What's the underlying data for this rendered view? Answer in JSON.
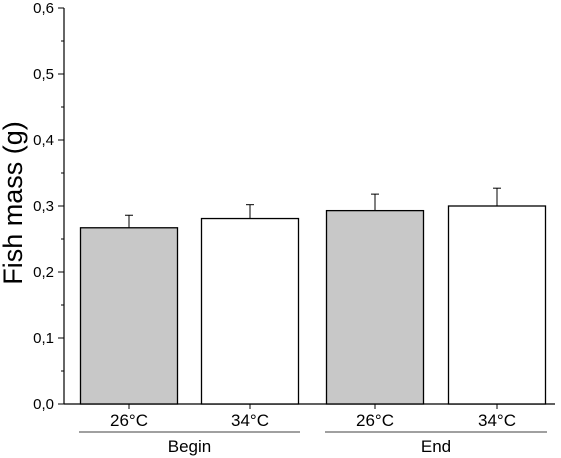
{
  "chart_data": {
    "type": "bar",
    "ylabel": "Fish mass (g)",
    "xlabel": "",
    "ylim": [
      0,
      0.6
    ],
    "yticks": [
      "0,0",
      "0,1",
      "0,2",
      "0,3",
      "0,4",
      "0,5",
      "0,6"
    ],
    "categories": [
      "26°C",
      "34°C",
      "26°C",
      "34°C"
    ],
    "groups": [
      "Begin",
      "End"
    ],
    "bars": [
      {
        "category": "26°C",
        "group": "Begin",
        "value": 0.267,
        "error": 0.019,
        "fill": "#c8c8c8"
      },
      {
        "category": "34°C",
        "group": "Begin",
        "value": 0.281,
        "error": 0.021,
        "fill": "#ffffff"
      },
      {
        "category": "26°C",
        "group": "End",
        "value": 0.293,
        "error": 0.025,
        "fill": "#c8c8c8"
      },
      {
        "category": "34°C",
        "group": "End",
        "value": 0.3,
        "error": 0.027,
        "fill": "#ffffff"
      }
    ],
    "grid": false,
    "legend": "none"
  }
}
